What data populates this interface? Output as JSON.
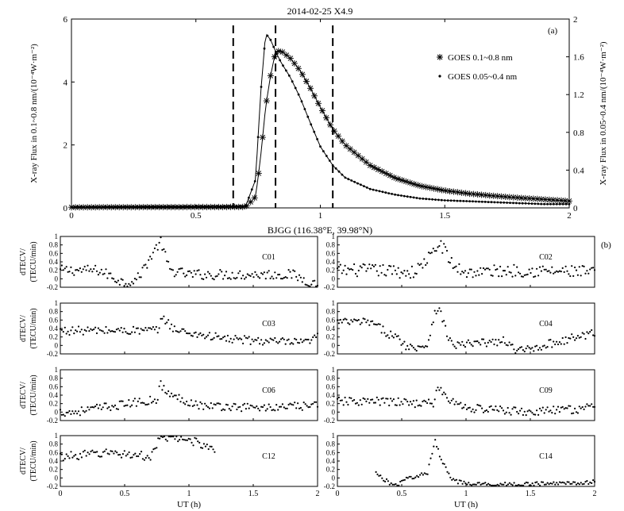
{
  "chart_data": [
    {
      "type": "line",
      "title": "2014-02-25 X4.9",
      "panel_label": "(a)",
      "xlabel": "",
      "ylabel": "X-ray Flux in 0.1~0.8 nm/(10⁻⁴W·m⁻²)",
      "y2label": "X-ray Flux in 0.05~0.4 nm/(10⁻⁴W·m⁻²)",
      "xlim": [
        0,
        2
      ],
      "ylim": [
        0,
        6
      ],
      "y2lim": [
        0,
        2
      ],
      "xticks": [
        "0",
        "0.5",
        "1",
        "1.5",
        "2"
      ],
      "yticks": [
        "0",
        "2",
        "4",
        "6"
      ],
      "y2ticks": [
        "0",
        "0.4",
        "0.8",
        "1.2",
        "1.6",
        "2"
      ],
      "vlines": [
        0.65,
        0.82,
        1.05
      ],
      "legend_position": "top-right",
      "series": [
        {
          "name": "GOES  0.1~0.8 nm",
          "marker": "asterisk",
          "axis": "left",
          "x": [
            0,
            0.7,
            0.74,
            0.76,
            0.78,
            0.8,
            0.82,
            0.84,
            0.88,
            0.92,
            0.96,
            1.0,
            1.05,
            1.1,
            1.2,
            1.3,
            1.4,
            1.5,
            1.6,
            1.7,
            1.8,
            1.9,
            2.0
          ],
          "values": [
            0.02,
            0.03,
            0.35,
            1.6,
            3.2,
            4.2,
            4.95,
            5.0,
            4.75,
            4.35,
            3.8,
            3.2,
            2.5,
            2.0,
            1.35,
            0.95,
            0.7,
            0.55,
            0.45,
            0.38,
            0.32,
            0.27,
            0.22
          ]
        },
        {
          "name": "GOES  0.05~0.4 nm",
          "marker": "dot",
          "axis": "right",
          "x": [
            0,
            0.7,
            0.74,
            0.76,
            0.78,
            0.8,
            0.82,
            0.84,
            0.88,
            0.92,
            0.96,
            1.0,
            1.05,
            1.1,
            1.2,
            1.3,
            1.4,
            1.5,
            1.6,
            1.7,
            1.8,
            1.9,
            2.0
          ],
          "values": [
            0.01,
            0.02,
            0.3,
            1.2,
            1.85,
            1.78,
            1.66,
            1.55,
            1.38,
            1.16,
            0.9,
            0.65,
            0.45,
            0.32,
            0.2,
            0.14,
            0.1,
            0.08,
            0.07,
            0.06,
            0.05,
            0.04,
            0.04
          ]
        }
      ]
    },
    {
      "type": "scatter",
      "title": "BJGG (116.38°E, 39.98°N)",
      "panel_label": "(b)",
      "xlabel": "UT (h)",
      "ylabel_line1": "dTECV/",
      "ylabel_line2": "(TECU/min)",
      "xlim": [
        0,
        2
      ],
      "ylim": [
        -0.2,
        1
      ],
      "xticks": [
        "0",
        "0.5",
        "1",
        "1.5",
        "2"
      ],
      "yticks": [
        "-0.2",
        "0",
        "0.2",
        "0.4",
        "0.6",
        "0.8",
        "1"
      ],
      "panels": [
        {
          "label": "C01",
          "x_range": [
            0,
            2
          ],
          "baseline": 0.15,
          "noise": 0.12,
          "x": [
            0.3,
            0.5,
            0.6,
            0.78,
            0.85,
            1.0,
            1.3,
            1.8,
            2.0
          ],
          "values": [
            0.2,
            -0.1,
            0.0,
            0.9,
            0.2,
            0.1,
            0.1,
            0.1,
            -0.15
          ]
        },
        {
          "label": "C02",
          "x_range": [
            0,
            2
          ],
          "baseline": 0.2,
          "noise": 0.15,
          "x": [
            0.3,
            0.6,
            0.76,
            0.8,
            0.9,
            1.0,
            1.4,
            2.0
          ],
          "values": [
            0.2,
            0.15,
            0.65,
            0.85,
            0.3,
            0.15,
            0.2,
            0.15
          ]
        },
        {
          "label": "C03",
          "x_range": [
            0,
            2
          ],
          "baseline": 0.2,
          "noise": 0.1,
          "x": [
            0.3,
            0.75,
            0.8,
            0.9,
            1.3,
            1.9,
            2.0
          ],
          "values": [
            0.35,
            0.35,
            0.65,
            0.35,
            0.15,
            0.05,
            0.2
          ]
        },
        {
          "label": "C04",
          "x_range": [
            0,
            2
          ],
          "baseline": 0.15,
          "noise": 0.1,
          "x": [
            0.25,
            0.5,
            0.55,
            0.7,
            0.76,
            0.8,
            0.86,
            0.9,
            1.3,
            1.4,
            2.0
          ],
          "values": [
            0.55,
            0.1,
            -0.05,
            0.0,
            0.85,
            0.8,
            0.2,
            0.0,
            0.1,
            -0.15,
            0.3
          ]
        },
        {
          "label": "C06",
          "x_range": [
            0,
            2
          ],
          "baseline": 0.2,
          "noise": 0.1,
          "x": [
            0.1,
            0.75,
            0.78,
            0.85,
            1.1,
            1.6,
            2.0
          ],
          "values": [
            0.0,
            0.3,
            0.65,
            0.4,
            0.15,
            0.1,
            0.15
          ]
        },
        {
          "label": "C09",
          "x_range": [
            0,
            2
          ],
          "baseline": 0.15,
          "noise": 0.1,
          "x": [
            0.3,
            0.75,
            0.78,
            0.86,
            1.0,
            1.5,
            2.0
          ],
          "values": [
            0.25,
            0.2,
            0.6,
            0.3,
            0.1,
            0.0,
            0.1
          ]
        },
        {
          "label": "C12",
          "x_range": [
            0,
            1.2
          ],
          "baseline": 0.5,
          "noise": 0.1,
          "x": [
            0,
            0.4,
            0.7,
            0.78,
            1.0,
            1.2
          ],
          "values": [
            0.5,
            0.6,
            0.5,
            0.95,
            0.9,
            0.7
          ]
        },
        {
          "label": "C14",
          "x_range": [
            0.3,
            2
          ],
          "baseline": -0.12,
          "noise": 0.05,
          "x": [
            0.3,
            0.45,
            0.55,
            0.7,
            0.76,
            0.8,
            0.85,
            0.9,
            1.0,
            1.5,
            2.0
          ],
          "values": [
            0.1,
            -0.2,
            0.0,
            0.1,
            0.9,
            0.5,
            0.2,
            -0.05,
            -0.15,
            -0.15,
            -0.1
          ]
        }
      ]
    }
  ]
}
